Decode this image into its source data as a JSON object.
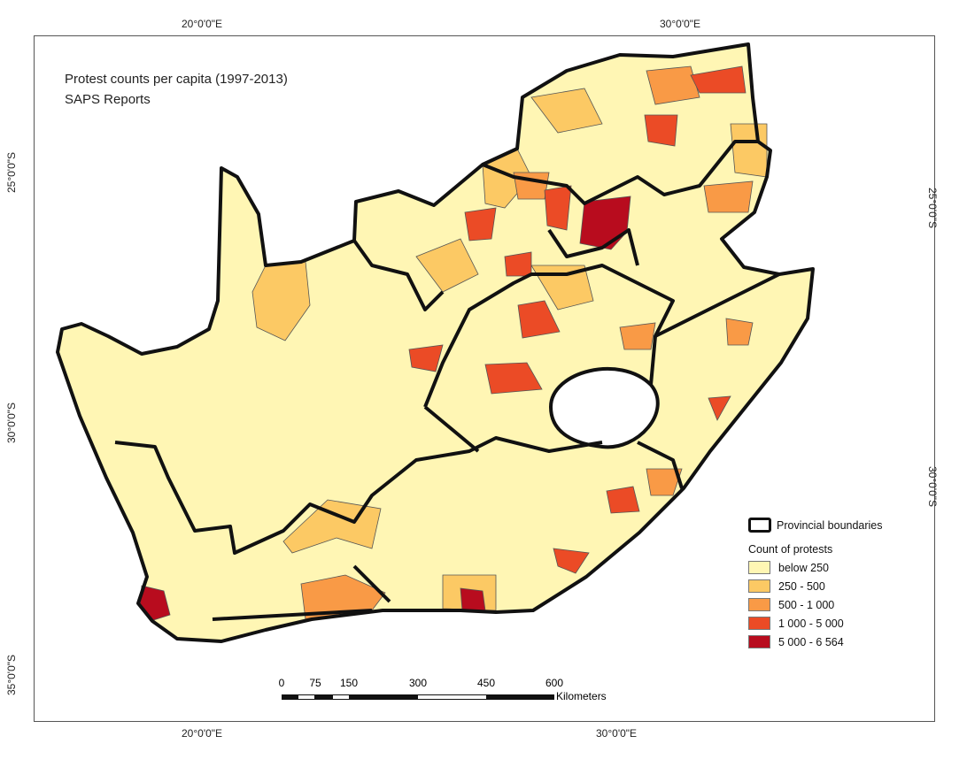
{
  "title": {
    "line1": "Protest counts per capita (1997-2013)",
    "line2": "SAPS Reports"
  },
  "graticule": {
    "top": [
      "20°0'0\"E",
      "30°0'0\"E"
    ],
    "bottom": [
      "20°0'0\"E",
      "30°0'0\"E"
    ],
    "left": [
      "25°0'0\"S",
      "30°0'0\"S",
      "35°0'0\"S"
    ],
    "right": [
      "25°0'0\"S",
      "30°0'0\"S"
    ]
  },
  "legend": {
    "boundary_label": "Provincial boundaries",
    "heading": "Count of protests",
    "classes": [
      {
        "label": "below 250",
        "color": "#fff6b4"
      },
      {
        "label": "250 - 500",
        "color": "#fcc964"
      },
      {
        "label": "500 - 1 000",
        "color": "#f99a46"
      },
      {
        "label": "1 000 - 5 000",
        "color": "#eb4b26"
      },
      {
        "label": "5 000 - 6 564",
        "color": "#b80c1e"
      }
    ]
  },
  "scale_bar": {
    "ticks": [
      "0",
      "75",
      "150",
      "300",
      "450",
      "600"
    ],
    "unit": "Kilometers"
  }
}
